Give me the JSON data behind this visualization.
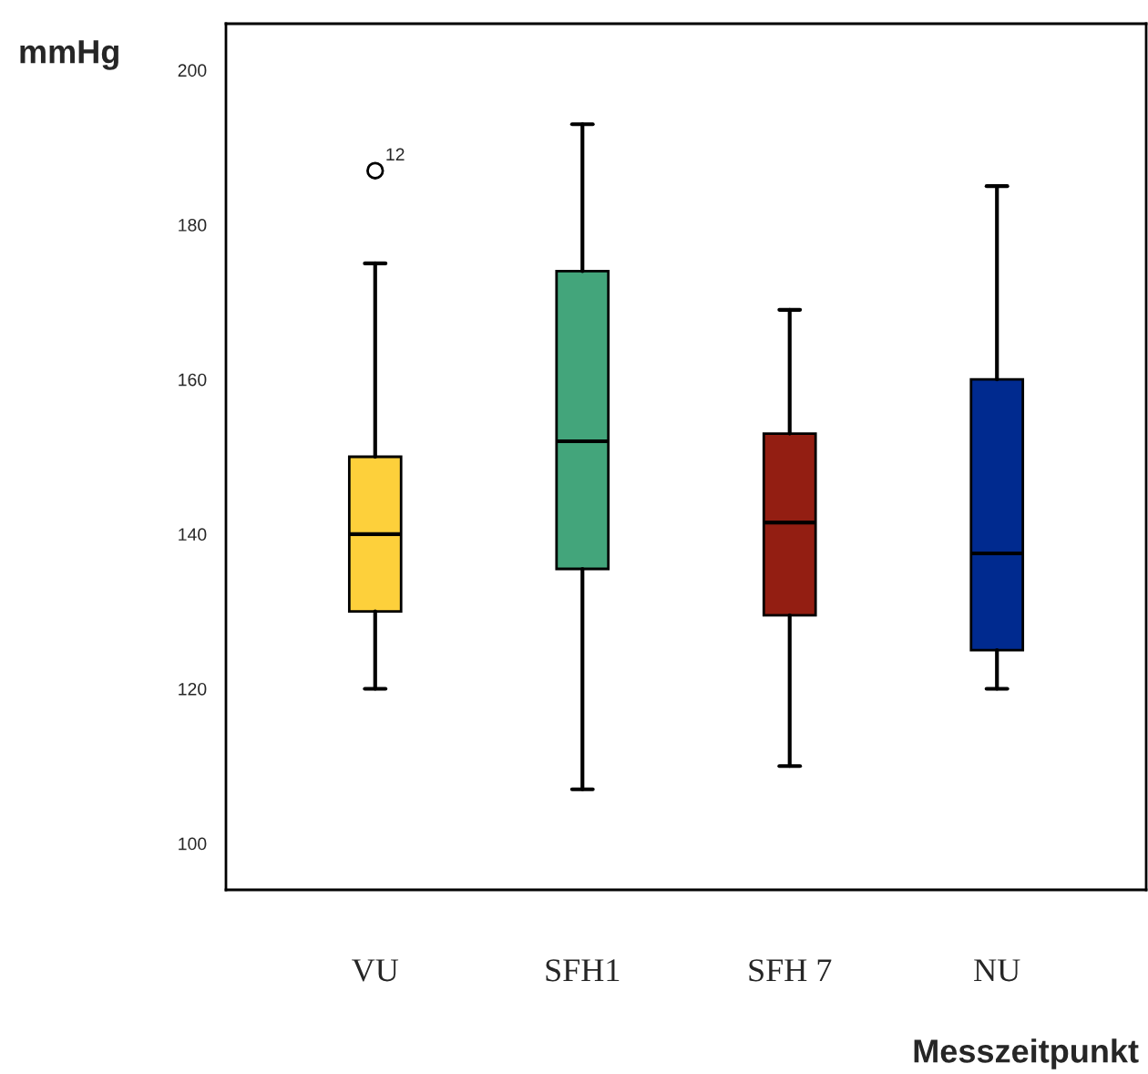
{
  "chart_data": {
    "type": "box",
    "ylabel": "mmHg",
    "xlabel": "Messzeitpunkt",
    "categories": [
      "VU",
      "SFH1",
      "SFH 7",
      "NU"
    ],
    "colors": [
      "#fdd03b",
      "#43a57b",
      "#931e12",
      "#002a8f"
    ],
    "boxes": [
      {
        "low": 120,
        "q1": 130,
        "median": 140,
        "q3": 150,
        "high": 175,
        "outliers": [
          187
        ]
      },
      {
        "low": 107,
        "q1": 135.5,
        "median": 152,
        "q3": 174,
        "high": 193
      },
      {
        "low": 110,
        "q1": 129.5,
        "median": 141.5,
        "q3": 153,
        "high": 169
      },
      {
        "low": 120,
        "q1": 125,
        "median": 137.5,
        "q3": 160,
        "high": 185
      }
    ],
    "annotations": [
      "12"
    ],
    "ylim": [
      94,
      206
    ],
    "yticks": [
      100,
      120,
      140,
      160,
      180,
      200
    ],
    "grid": false,
    "legend": false
  }
}
